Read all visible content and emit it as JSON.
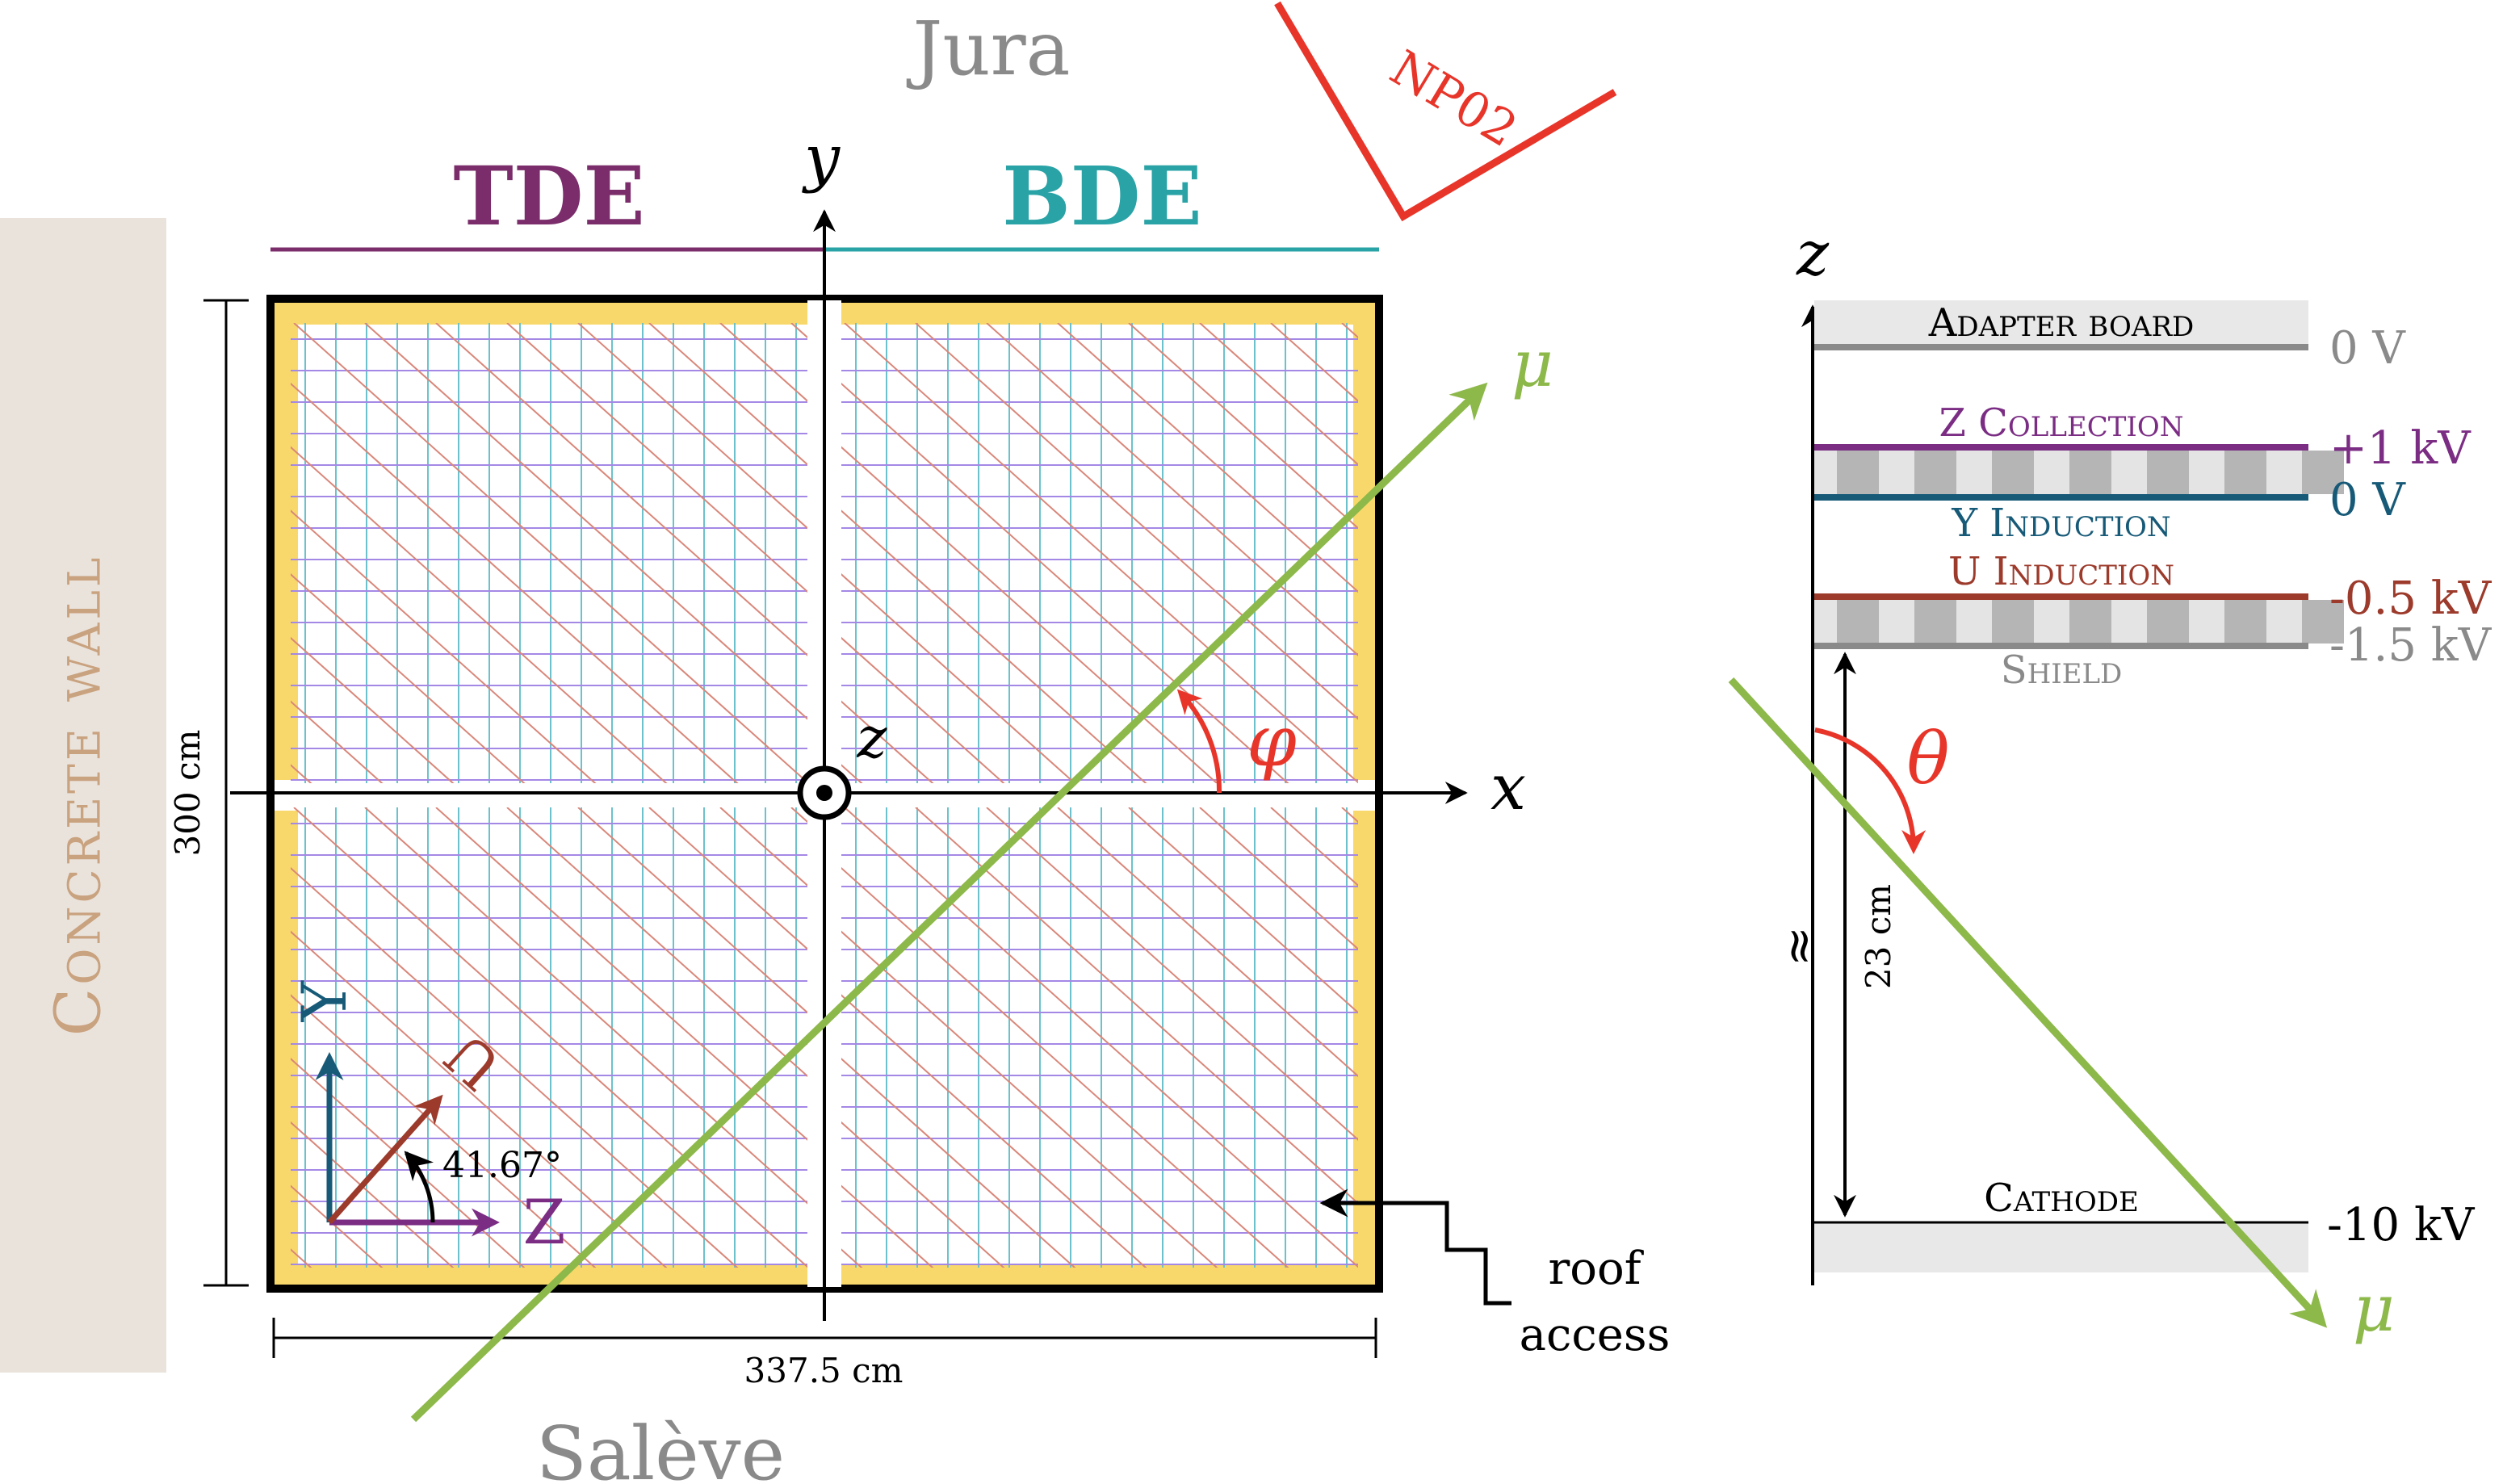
{
  "colors": {
    "tde": "#7b2d6b",
    "bde": "#2aa3a6",
    "wall": "#eae3dc",
    "wall_text": "#c9a27f",
    "yellow": "#f8d86a",
    "np02": "#e8352a",
    "muon": "#8db84a",
    "grid_collection": "#a488e6",
    "grid_y": "#6cc2cc",
    "grid_u": "#d9877a",
    "gray": "#8a8a8a",
    "y_axis": "#175a78",
    "u_axis": "#9c3a2b",
    "z_axis": "#7b2d84"
  },
  "labels": {
    "jura": "Jura",
    "saleve": "Salève",
    "np02": "NP02",
    "tde": "TDE",
    "bde": "BDE",
    "concrete_wall": "Concrete wall",
    "axis_x": "x",
    "axis_y": "y",
    "axis_z": "z",
    "mu": "μ",
    "phi": "φ",
    "theta": "θ",
    "height_dim": "300 cm",
    "width_dim": "337.5 cm",
    "angle": "41.67°",
    "plane_y": "Y",
    "plane_u": "U",
    "plane_z": "Z",
    "roof_1": "roof",
    "roof_2": "access"
  },
  "side": {
    "axis_z": "z",
    "adapter_board": "Adapter board",
    "z_collection": "Z Collection",
    "y_induction": "Y Induction",
    "u_induction": "U Induction",
    "shield": "Shield",
    "cathode": "Cathode",
    "v_adapter": "0 V",
    "v_collection": "+1 kV",
    "v_y": "0 V",
    "v_u": "-0.5 kV",
    "v_shield": "-1.5 kV",
    "v_cathode": "-10 kV",
    "gap": "23 cm",
    "break": "≈",
    "mu": "μ",
    "theta": "θ"
  }
}
